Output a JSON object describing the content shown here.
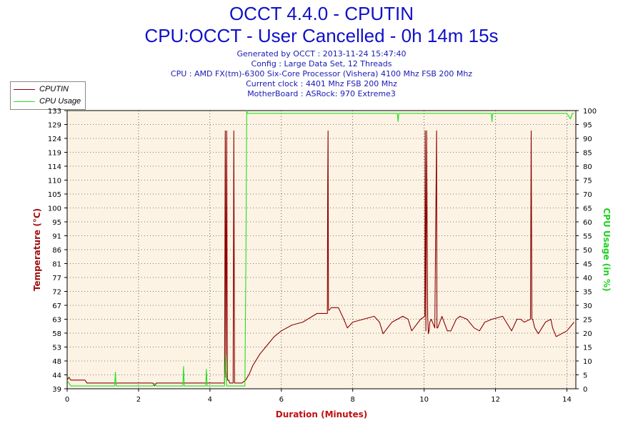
{
  "header": {
    "title_line1": "OCCT 4.4.0 - CPUTIN",
    "title_line2": "CPU:OCCT - User Cancelled - 0h 14m 15s",
    "info_lines": [
      "Generated by OCCT : 2013-11-24 15:47:40",
      "Config : Large Data Set, 12 Threads",
      "CPU : AMD FX(tm)-6300 Six-Core Processor (Vishera) 4100 Mhz FSB 200 Mhz",
      "Current clock : 4401 Mhz FSB 200 Mhz",
      "MotherBoard : ASRock: 970 Extreme3"
    ]
  },
  "legend": {
    "items": [
      {
        "label": "CPUTIN",
        "color": "#8b0000"
      },
      {
        "label": "CPU Usage",
        "color": "#20e020"
      }
    ]
  },
  "colors": {
    "plot_background": "#fdf3e4",
    "temperature_line": "#8b0000",
    "usage_line": "#20e020",
    "left_axis_label": "#a01010",
    "right_axis_label": "#20d020",
    "x_axis_label": "#c01010",
    "grid": "#000000"
  },
  "chart_data": {
    "type": "line",
    "title": "OCCT 4.4.0 - CPUTIN",
    "subtitle": "CPU:OCCT - User Cancelled - 0h 14m 15s",
    "xlabel": "Duration (Minutes)",
    "ylabel_left": "Temperature (°C)",
    "ylabel_right": "CPU Usage (in %)",
    "xlim": [
      0,
      14.25
    ],
    "ylim_left": [
      39,
      135
    ],
    "ylim_right": [
      0,
      100
    ],
    "x_ticks": [
      "0",
      "2",
      "4",
      "6",
      "8",
      "10",
      "12",
      "14"
    ],
    "y_left_ticks": [
      "39",
      "44",
      "48",
      "53",
      "58",
      "63",
      "67",
      "72",
      "77",
      "81",
      "86",
      "91",
      "95",
      "100",
      "105",
      "110",
      "114",
      "119",
      "124",
      "129",
      "133"
    ],
    "y_right_ticks": [
      "0",
      "5",
      "10",
      "15",
      "20",
      "25",
      "30",
      "35",
      "40",
      "45",
      "50",
      "55",
      "60",
      "65",
      "70",
      "75",
      "80",
      "85",
      "90",
      "95",
      "100"
    ],
    "grid": true,
    "legend_position": "top-left",
    "series": [
      {
        "name": "CPUTIN",
        "axis": "left",
        "x": [
          0,
          0.05,
          0.1,
          0.5,
          0.55,
          1.0,
          1.5,
          2.0,
          2.4,
          2.45,
          2.5,
          3.0,
          3.5,
          4.0,
          4.3,
          4.41,
          4.43,
          4.45,
          4.47,
          4.49,
          4.51,
          4.53,
          4.55,
          4.6,
          4.65,
          4.67,
          4.69,
          4.71,
          4.8,
          4.9,
          5.0,
          5.1,
          5.2,
          5.4,
          5.6,
          5.8,
          6.0,
          6.3,
          6.6,
          7.0,
          7.29,
          7.3,
          7.31,
          7.32,
          7.33,
          7.4,
          7.6,
          7.75,
          7.85,
          8.0,
          8.3,
          8.6,
          8.75,
          8.85,
          9.1,
          9.4,
          9.55,
          9.65,
          9.9,
          10.02,
          10.03,
          10.05,
          10.07,
          10.1,
          10.12,
          10.14,
          10.16,
          10.2,
          10.3,
          10.35,
          10.36,
          10.38,
          10.5,
          10.65,
          10.75,
          10.9,
          11.0,
          11.2,
          11.4,
          11.55,
          11.7,
          11.9,
          12.2,
          12.3,
          12.45,
          12.6,
          12.7,
          12.8,
          12.98,
          13.0,
          13.02,
          13.04,
          13.1,
          13.2,
          13.3,
          13.4,
          13.55,
          13.6,
          13.7,
          14.0,
          14.2
        ],
        "y": [
          42,
          43,
          42,
          42,
          41,
          41,
          41,
          41,
          41,
          40,
          41,
          41,
          41,
          41,
          41,
          41,
          128,
          43,
          128,
          42,
          42,
          42,
          41,
          41,
          41,
          128,
          41,
          41,
          41,
          41,
          42,
          44,
          47,
          51,
          54,
          57,
          59,
          61,
          62,
          65,
          65,
          110,
          128,
          67,
          66,
          67,
          67,
          63,
          60,
          62,
          63,
          64,
          62,
          58,
          62,
          64,
          63,
          59,
          63,
          64,
          128,
          59,
          128,
          64,
          58,
          59,
          62,
          63,
          60,
          128,
          60,
          60,
          64,
          59,
          59,
          63,
          64,
          63,
          60,
          59,
          62,
          63,
          64,
          62,
          59,
          63,
          63,
          62,
          63,
          128,
          63,
          63,
          60,
          58,
          60,
          62,
          63,
          60,
          57,
          59,
          62
        ]
      },
      {
        "name": "CPU Usage",
        "axis": "right",
        "x": [
          0,
          0.05,
          0.1,
          0.5,
          1.0,
          1.33,
          1.35,
          1.37,
          2.0,
          2.4,
          2.45,
          2.5,
          3.0,
          3.24,
          3.26,
          3.28,
          3.88,
          3.9,
          3.92,
          4.3,
          4.41,
          4.44,
          4.47,
          4.5,
          4.6,
          4.7,
          4.9,
          4.98,
          5.01,
          5.03,
          5.05,
          5.2,
          5.5,
          6.0,
          7.0,
          8.0,
          9.25,
          9.27,
          9.29,
          10.0,
          11.0,
          11.88,
          11.9,
          11.92,
          13.0,
          14.0,
          14.1,
          14.15,
          14.2
        ],
        "y": [
          3,
          2,
          1,
          1,
          1,
          1,
          6,
          1,
          1,
          1,
          2,
          1,
          1,
          1,
          8,
          1,
          1,
          7,
          1,
          1,
          1,
          12,
          1,
          1,
          1,
          1,
          1,
          1,
          50,
          100,
          99,
          99,
          99,
          99,
          99,
          99,
          99,
          96,
          99,
          99,
          99,
          99,
          96,
          99,
          99,
          99,
          97,
          99,
          99
        ]
      }
    ]
  }
}
